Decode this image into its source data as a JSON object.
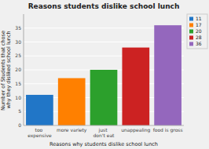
{
  "chart_data": {
    "type": "bar",
    "title": "Reasons students dislike school lunch",
    "xlabel": "Reasons why students dislike school lunch",
    "ylabel": "Number of Students that chose why they disliked school lunch",
    "categories": [
      "too expensive",
      "more variety",
      "just don't eat",
      "unappealing",
      "food is gross"
    ],
    "values": [
      11,
      17,
      20,
      28,
      36
    ],
    "colors": [
      "#2176c7",
      "#ff8000",
      "#2ca02c",
      "#cc2222",
      "#9467bd"
    ],
    "ylim": [
      0,
      40
    ],
    "yticks": [
      0,
      5,
      10,
      15,
      20,
      25,
      30,
      35
    ],
    "grid": true,
    "legend": "right"
  }
}
